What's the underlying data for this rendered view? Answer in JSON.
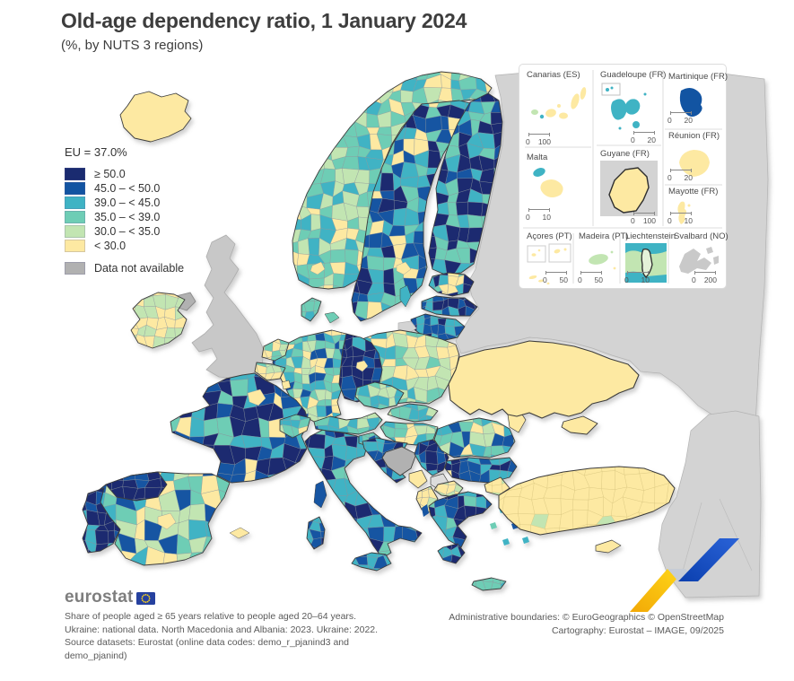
{
  "title": "Old-age dependency ratio, 1 January 2024",
  "subtitle": "(%, by NUTS 3 regions)",
  "legend": {
    "eu_value_label": "EU = 37.0%",
    "classes": [
      {
        "key": "c1",
        "label": "≥ 50.0",
        "color": "#1a2b70"
      },
      {
        "key": "c2",
        "label": "45.0 – < 50.0",
        "color": "#1254a2"
      },
      {
        "key": "c3",
        "label": "39.0 – < 45.0",
        "color": "#3fb3c4"
      },
      {
        "key": "c4",
        "label": "35.0 – < 39.0",
        "color": "#6ecdb5"
      },
      {
        "key": "c5",
        "label": "30.0 – < 35.0",
        "color": "#c2e5b2"
      },
      {
        "key": "c6",
        "label": "< 30.0",
        "color": "#fde9a2"
      }
    ],
    "no_data": {
      "key": "na",
      "label": "Data not available",
      "color": "#b1b1b1"
    }
  },
  "map": {
    "other_colors": {
      "uk": "#c8c8c8",
      "non_eu": "#d3d3d3",
      "kosovo": "#dcdcdc",
      "country_border": "#3e3e3e",
      "cell_border": "#8f989d",
      "national_border": "#3a3a3a",
      "non_eu_border": "#b3b3b3"
    },
    "regions": {
      "iceland": {
        "name": "Iceland",
        "mode": "solid",
        "class": "c6"
      },
      "norway": {
        "name": "Norway",
        "mode": "mosaic",
        "weights": {
          "c5": 0.3,
          "c4": 0.35,
          "c3": 0.2,
          "c6": 0.15
        }
      },
      "oslo": {
        "name": "Oslo area",
        "mode": "solid",
        "class": "c6"
      },
      "sweden": {
        "name": "Sweden",
        "mode": "mosaic",
        "weights": {
          "c1": 0.22,
          "c2": 0.3,
          "c3": 0.22,
          "c4": 0.13,
          "c6": 0.13
        }
      },
      "stockholm": {
        "name": "Stockholm area",
        "mode": "solid",
        "class": "c6"
      },
      "gotland": {
        "name": "Gotland",
        "mode": "solid",
        "class": "c3"
      },
      "finland": {
        "name": "Finland",
        "mode": "mosaic",
        "weights": {
          "c1": 0.45,
          "c2": 0.12,
          "c3": 0.18,
          "c4": 0.25
        }
      },
      "russia": {
        "name": "Russia and Belarus",
        "mode": "solid",
        "class": "non_eu"
      },
      "mideast": {
        "name": "Middle East",
        "mode": "solid",
        "class": "non_eu"
      },
      "estonia": {
        "name": "Estonia",
        "mode": "mosaic",
        "weights": {
          "c3": 0.5,
          "c1": 0.2,
          "c6": 0.15,
          "c4": 0.15
        }
      },
      "latvia": {
        "name": "Latvia",
        "mode": "mosaic",
        "weights": {
          "c2": 0.45,
          "c3": 0.3,
          "c1": 0.25
        }
      },
      "lithuania": {
        "name": "Lithuania",
        "mode": "mosaic",
        "weights": {
          "c2": 0.4,
          "c3": 0.35,
          "c1": 0.25
        }
      },
      "kaliningrad": {
        "name": "Kaliningrad",
        "mode": "solid",
        "class": "non_eu"
      },
      "uk": {
        "name": "United Kingdom",
        "mode": "solid",
        "class": "uk"
      },
      "n_ireland": {
        "name": "Northern Ireland",
        "mode": "solid",
        "class": "na"
      },
      "ireland": {
        "name": "Ireland",
        "mode": "mosaic",
        "weights": {
          "c6": 0.55,
          "c5": 0.45
        }
      },
      "denmark": {
        "name": "Denmark",
        "mode": "mosaic",
        "weights": {
          "c4": 0.5,
          "c3": 0.3,
          "c5": 0.2
        }
      },
      "denmark_isles": {
        "name": "Danish islands",
        "mode": "solid",
        "class": "c4"
      },
      "poland": {
        "name": "Poland",
        "mode": "mosaic",
        "weights": {
          "c5": 0.34,
          "c4": 0.26,
          "c3": 0.22,
          "c6": 0.18
        }
      },
      "germany_west": {
        "name": "Germany (west)",
        "mode": "mosaic",
        "weights": {
          "c3": 0.26,
          "c4": 0.22,
          "c5": 0.2,
          "c6": 0.18,
          "c2": 0.14
        }
      },
      "germany_east": {
        "name": "Germany (east)",
        "mode": "mosaic",
        "weights": {
          "c1": 0.72,
          "c2": 0.18,
          "c3": 0.1
        }
      },
      "berlin": {
        "name": "Berlin",
        "mode": "solid",
        "class": "c6"
      },
      "netherlands": {
        "name": "Netherlands",
        "mode": "mosaic",
        "weights": {
          "c5": 0.4,
          "c4": 0.35,
          "c6": 0.25
        }
      },
      "belgium": {
        "name": "Belgium",
        "mode": "mosaic",
        "weights": {
          "c5": 0.45,
          "c4": 0.3,
          "c6": 0.25
        }
      },
      "luxembourg": {
        "name": "Luxembourg",
        "mode": "solid",
        "class": "c6"
      },
      "france": {
        "name": "France",
        "mode": "mosaic",
        "weights": {
          "c1": 0.28,
          "c2": 0.26,
          "c3": 0.26,
          "c4": 0.12,
          "c6": 0.08
        }
      },
      "paris": {
        "name": "Paris area",
        "mode": "solid",
        "class": "c6"
      },
      "corsica": {
        "name": "Corsica",
        "mode": "solid",
        "class": "c2"
      },
      "spain": {
        "name": "Spain",
        "mode": "mosaic",
        "weights": {
          "c3": 0.22,
          "c4": 0.2,
          "c5": 0.26,
          "c6": 0.18,
          "c2": 0.14
        }
      },
      "spain_nw": {
        "name": "Spain (north-west)",
        "mode": "mosaic",
        "weights": {
          "c1": 0.7,
          "c2": 0.3
        }
      },
      "madrid": {
        "name": "Madrid area",
        "mode": "solid",
        "class": "c6"
      },
      "portugal": {
        "name": "Portugal",
        "mode": "mosaic",
        "weights": {
          "c1": 0.5,
          "c2": 0.25,
          "c3": 0.25
        }
      },
      "balearics": {
        "name": "Balearic Islands",
        "mode": "solid",
        "class": "c6"
      },
      "italy": {
        "name": "Italy",
        "mode": "mosaic",
        "weights": {
          "c2": 0.34,
          "c3": 0.36,
          "c1": 0.14,
          "c4": 0.16
        }
      },
      "sicily": {
        "name": "Sicily",
        "mode": "mosaic",
        "weights": {
          "c3": 0.6,
          "c2": 0.4
        }
      },
      "sardinia": {
        "name": "Sardinia",
        "mode": "mosaic",
        "weights": {
          "c1": 0.4,
          "c2": 0.35,
          "c3": 0.25
        }
      },
      "switzerland": {
        "name": "Switzerland",
        "mode": "mosaic",
        "weights": {
          "c3": 0.35,
          "c4": 0.3,
          "c5": 0.2,
          "c6": 0.15
        }
      },
      "austria": {
        "name": "Austria",
        "mode": "mosaic",
        "weights": {
          "c3": 0.4,
          "c4": 0.3,
          "c5": 0.15,
          "c2": 0.15
        }
      },
      "czechia": {
        "name": "Czechia",
        "mode": "mosaic",
        "weights": {
          "c3": 0.45,
          "c4": 0.3,
          "c5": 0.25
        }
      },
      "slovakia": {
        "name": "Slovakia",
        "mode": "mosaic",
        "weights": {
          "c5": 0.4,
          "c4": 0.35,
          "c3": 0.25
        }
      },
      "hungary": {
        "name": "Hungary",
        "mode": "mosaic",
        "weights": {
          "c3": 0.3,
          "c4": 0.3,
          "c5": 0.25,
          "c6": 0.15
        }
      },
      "slovenia": {
        "name": "Slovenia",
        "mode": "mosaic",
        "weights": {
          "c3": 0.5,
          "c4": 0.3,
          "c2": 0.2
        }
      },
      "croatia": {
        "name": "Croatia",
        "mode": "mosaic",
        "weights": {
          "c2": 0.4,
          "c3": 0.4,
          "c1": 0.2
        }
      },
      "bosnia": {
        "name": "Bosnia and Herzegovina",
        "mode": "solid",
        "class": "na"
      },
      "serbia": {
        "name": "Serbia",
        "mode": "mosaic",
        "weights": {
          "c1": 0.32,
          "c2": 0.34,
          "c3": 0.2,
          "c6": 0.14
        }
      },
      "kosovo": {
        "name": "Kosovo",
        "mode": "solid",
        "class": "kosovo"
      },
      "montenegro": {
        "name": "Montenegro",
        "mode": "solid",
        "class": "c6"
      },
      "albania": {
        "name": "Albania",
        "mode": "mosaic",
        "weights": {
          "c6": 0.7,
          "c5": 0.3
        }
      },
      "north_macedonia": {
        "name": "North Macedonia",
        "mode": "mosaic",
        "weights": {
          "c5": 0.5,
          "c6": 0.5
        }
      },
      "bulgaria": {
        "name": "Bulgaria",
        "mode": "mosaic",
        "weights": {
          "c2": 0.4,
          "c1": 0.22,
          "c3": 0.28,
          "c6": 0.1
        }
      },
      "romania": {
        "name": "Romania",
        "mode": "mosaic",
        "weights": {
          "c4": 0.28,
          "c3": 0.24,
          "c5": 0.26,
          "c2": 0.12,
          "c6": 0.1
        }
      },
      "moldova": {
        "name": "Moldova",
        "mode": "solid",
        "class": "c6"
      },
      "ukraine": {
        "name": "Ukraine",
        "mode": "solid",
        "class": "c6"
      },
      "crimea": {
        "name": "Crimea",
        "mode": "solid",
        "class": "c6"
      },
      "greece": {
        "name": "Greece",
        "mode": "mosaic",
        "weights": {
          "c1": 0.34,
          "c2": 0.26,
          "c3": 0.26,
          "c4": 0.14
        }
      },
      "peloponnese": {
        "name": "Peloponnese",
        "mode": "mosaic",
        "weights": {
          "c2": 0.5,
          "c1": 0.3,
          "c3": 0.2
        }
      },
      "crete": {
        "name": "Crete",
        "mode": "mosaic",
        "weights": {
          "c4": 0.6,
          "c3": 0.4
        }
      },
      "ae1": {
        "name": "Aegean island",
        "mode": "solid",
        "class": "c3"
      },
      "ae2": {
        "name": "Aegean island",
        "mode": "solid",
        "class": "c2"
      },
      "ae3": {
        "name": "Aegean island",
        "mode": "solid",
        "class": "c3"
      },
      "ae4": {
        "name": "Aegean island",
        "mode": "solid",
        "class": "c2"
      },
      "ae5": {
        "name": "Aegean island",
        "mode": "solid",
        "class": "c3"
      },
      "ae6": {
        "name": "Aegean island",
        "mode": "solid",
        "class": "c4"
      },
      "ionian": {
        "name": "Ionian island",
        "mode": "solid",
        "class": "c2"
      },
      "turkey_thrace": {
        "name": "Turkey (Thrace)",
        "mode": "mosaic",
        "weights": {
          "c6": 0.7,
          "c5": 0.3
        }
      },
      "turkey": {
        "name": "Turkey",
        "mode": "mosaic",
        "weights": {
          "c6": 0.97,
          "c5": 0.03
        }
      },
      "cyprus": {
        "name": "Cyprus",
        "mode": "solid",
        "class": "c6"
      }
    }
  },
  "insets": [
    {
      "id": "canarias",
      "label": "Canarias (ES)",
      "scale0": "0",
      "scale1": "100"
    },
    {
      "id": "guadeloupe",
      "label": "Guadeloupe (FR)",
      "scale0": "0",
      "scale1": "20"
    },
    {
      "id": "martinique",
      "label": "Martinique (FR)",
      "scale0": "0",
      "scale1": "20"
    },
    {
      "id": "malta",
      "label": "Malta",
      "scale0": "0",
      "scale1": "10"
    },
    {
      "id": "guyane",
      "label": "Guyane (FR)",
      "scale0": "0",
      "scale1": "100"
    },
    {
      "id": "reunion",
      "label": "Réunion (FR)",
      "scale0": "0",
      "scale1": "20"
    },
    {
      "id": "mayotte",
      "label": "Mayotte (FR)",
      "scale0": "0",
      "scale1": "10"
    },
    {
      "id": "acores",
      "label": "Açores (PT)",
      "scale0": "0",
      "scale1": "50"
    },
    {
      "id": "madeira",
      "label": "Madeira (PT)",
      "scale0": "0",
      "scale1": "50"
    },
    {
      "id": "liechtenstein",
      "label": "Liechtenstein",
      "scale0": "0",
      "scale1": "10"
    },
    {
      "id": "svalbard",
      "label": "Svalbard (NO)",
      "scale0": "0",
      "scale1": "200"
    }
  ],
  "footer": {
    "logo_text": "eurostat",
    "notes": [
      "Share of people aged ≥ 65 years relative to people aged 20–64 years.",
      "Ukraine: national data. North Macedonia and Albania: 2023. Ukraine: 2022.",
      "Source datasets: Eurostat (online data codes: demo_r_pjanind3 and",
      "demo_pjanind)"
    ],
    "credits": [
      "Administrative boundaries: © EuroGeographics © OpenStreetMap",
      "Cartography: Eurostat – IMAGE, 09/2025"
    ]
  },
  "branding": {
    "flag_blue": "#26419f",
    "star_yellow": "#ffd617",
    "ribbon_yellow_dark": "#f2a806",
    "ribbon_yellow_light": "#ffd819",
    "ribbon_blue_dark": "#0b3fae",
    "ribbon_blue_light": "#2a63d8",
    "ribbon_gray": "#c6ccd6"
  }
}
